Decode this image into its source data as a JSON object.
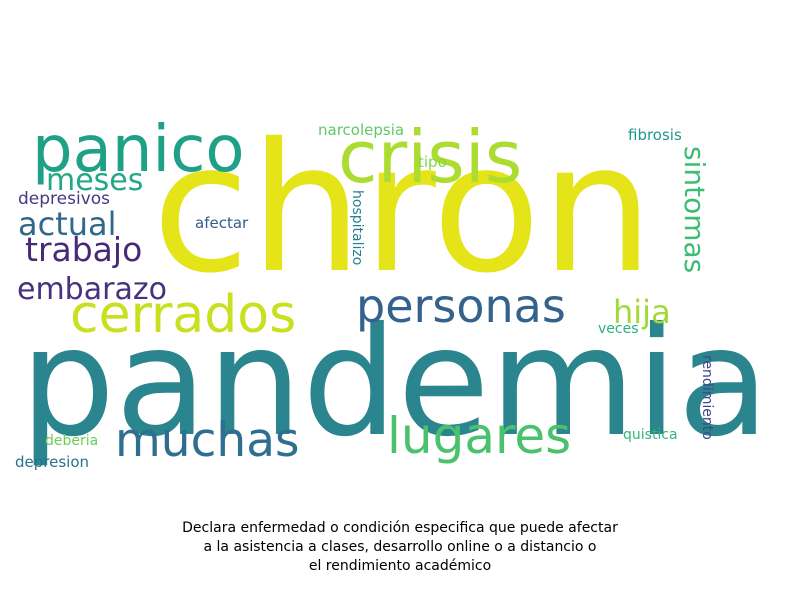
{
  "words": [
    {
      "text": "pandemia",
      "color": "#2a858e"
    },
    {
      "text": "chron",
      "color": "#e5e419"
    },
    {
      "text": "crisis",
      "color": "#addc30"
    },
    {
      "text": "panico",
      "color": "#1fa187"
    },
    {
      "text": "cerrados",
      "color": "#c8e020"
    },
    {
      "text": "personas",
      "color": "#33628d"
    },
    {
      "text": "lugares",
      "color": "#4ac16d"
    },
    {
      "text": "muchas",
      "color": "#2e6e8e"
    },
    {
      "text": "embarazo",
      "color": "#46327e"
    },
    {
      "text": "trabajo",
      "color": "#482878"
    },
    {
      "text": "actual",
      "color": "#31688e"
    },
    {
      "text": "meses",
      "color": "#22a884"
    },
    {
      "text": "hija",
      "color": "#a0da39"
    },
    {
      "text": "sintomas",
      "color": "#3dbc74"
    },
    {
      "text": "depresivos",
      "color": "#443983"
    },
    {
      "text": "narcolepsia",
      "color": "#5ec962"
    },
    {
      "text": "fibrosis",
      "color": "#1f988b"
    },
    {
      "text": "tipo",
      "color": "#86d549"
    },
    {
      "text": "afectar",
      "color": "#375a8c"
    },
    {
      "text": "hospitalizo",
      "color": "#26818e"
    },
    {
      "text": "veces",
      "color": "#2ab07f"
    },
    {
      "text": "rendimiento",
      "color": "#3f4788"
    },
    {
      "text": "quistica",
      "color": "#35b779"
    },
    {
      "text": "deberia",
      "color": "#6ccd5a"
    },
    {
      "text": "depresion",
      "color": "#2c728e"
    }
  ],
  "caption": {
    "line1": "Declara enfermedad o condición especifica que puede afectar",
    "line2": "a la asistencia a clases, desarrollo online o a distancio o",
    "line3": "el rendimiento académico"
  }
}
